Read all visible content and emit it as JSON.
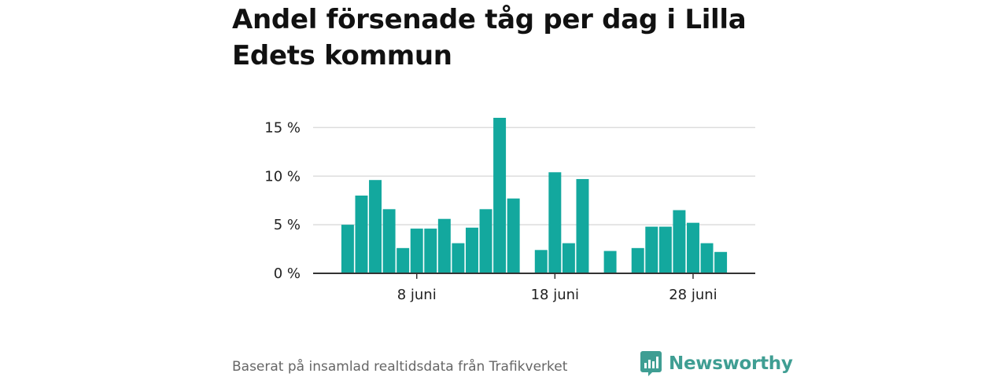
{
  "title": "Andel försenade tåg per dag i Lilla Edets kommun",
  "source": "Baserat på insamlad realtidsdata från Trafikverket",
  "brand": {
    "name": "Newsworthy",
    "icon": "newsworthy-logo-icon",
    "color": "#3f9e93"
  },
  "colors": {
    "bar": "#13a89e",
    "grid": "#dddddd",
    "axis": "#333333"
  },
  "chart_data": {
    "type": "bar",
    "title": "Andel försenade tåg per dag i Lilla Edets kommun",
    "xlabel": "",
    "ylabel": "",
    "x": [
      3,
      4,
      5,
      6,
      7,
      8,
      9,
      10,
      11,
      12,
      13,
      14,
      15,
      16,
      17,
      18,
      19,
      20,
      21,
      22,
      23,
      24,
      25,
      26,
      27,
      28,
      29,
      30
    ],
    "values": [
      5.0,
      8.0,
      9.6,
      6.6,
      2.6,
      4.6,
      4.6,
      5.6,
      3.1,
      4.7,
      6.6,
      16.0,
      7.7,
      null,
      2.4,
      10.4,
      3.1,
      9.7,
      null,
      2.3,
      null,
      2.6,
      4.8,
      4.8,
      6.5,
      5.2,
      3.1,
      2.2
    ],
    "unit": "%",
    "xlim": [
      0.5,
      32.5
    ],
    "ylim": [
      0,
      16
    ],
    "yticks": [
      0,
      5,
      10,
      15
    ],
    "ytick_labels": [
      "0 %",
      "5 %",
      "10 %",
      "15 %"
    ],
    "xticks": [
      8,
      18,
      28
    ],
    "xtick_labels": [
      "8 juni",
      "18 juni",
      "28 juni"
    ],
    "grid": true
  }
}
